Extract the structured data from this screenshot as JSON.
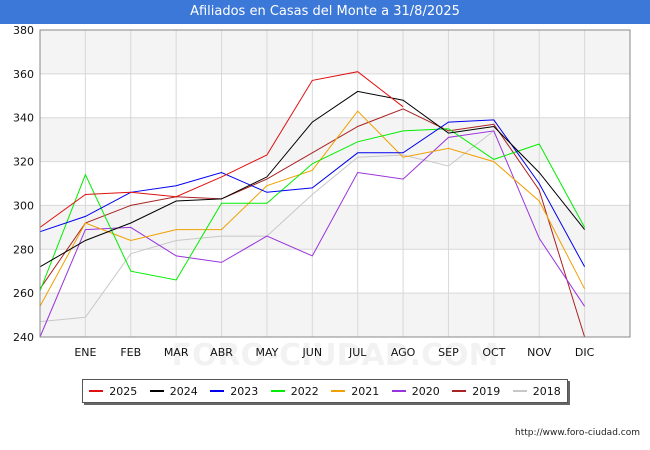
{
  "title": "Afiliados en Casas del Monte a 31/8/2025",
  "source": "http://www.foro-ciudad.com",
  "watermark": "FORO-CIUDAD.COM",
  "chart_data": {
    "type": "line",
    "categories": [
      "",
      "ENE",
      "FEB",
      "MAR",
      "ABR",
      "MAY",
      "JUN",
      "JUL",
      "AGO",
      "SEP",
      "OCT",
      "NOV",
      "DIC"
    ],
    "ylim": [
      240,
      380
    ],
    "yticks": [
      240,
      260,
      280,
      300,
      320,
      340,
      360,
      380
    ],
    "grid": true,
    "legend_position": "bottom",
    "series": [
      {
        "name": "2025",
        "color": "#e01010",
        "values": [
          290,
          305,
          306,
          304,
          313,
          323,
          357,
          361,
          345,
          null,
          null,
          null,
          null
        ]
      },
      {
        "name": "2024",
        "color": "#000000",
        "values": [
          272,
          284,
          292,
          302,
          303,
          313,
          338,
          352,
          348,
          333,
          336,
          315,
          289
        ]
      },
      {
        "name": "2023",
        "color": "#0000ee",
        "values": [
          288,
          295,
          306,
          309,
          315,
          306,
          308,
          324,
          324,
          338,
          339,
          310,
          272
        ]
      },
      {
        "name": "2022",
        "color": "#00ee00",
        "values": [
          261,
          314,
          270,
          266,
          301,
          301,
          319,
          329,
          334,
          335,
          321,
          328,
          290
        ]
      },
      {
        "name": "2021",
        "color": "#f0a000",
        "values": [
          254,
          292,
          284,
          289,
          289,
          309,
          316,
          343,
          322,
          326,
          320,
          302,
          262
        ]
      },
      {
        "name": "2020",
        "color": "#9933dd",
        "values": [
          240,
          289,
          290,
          277,
          274,
          286,
          277,
          315,
          312,
          331,
          334,
          285,
          254
        ]
      },
      {
        "name": "2019",
        "color": "#aa2222",
        "values": [
          262,
          292,
          300,
          304,
          303,
          312,
          324,
          336,
          344,
          334,
          337,
          307,
          240
        ]
      },
      {
        "name": "2018",
        "color": "#c8c8c8",
        "values": [
          247,
          249,
          278,
          284,
          286,
          286,
          305,
          322,
          323,
          318,
          334,
          null,
          null
        ]
      }
    ]
  }
}
